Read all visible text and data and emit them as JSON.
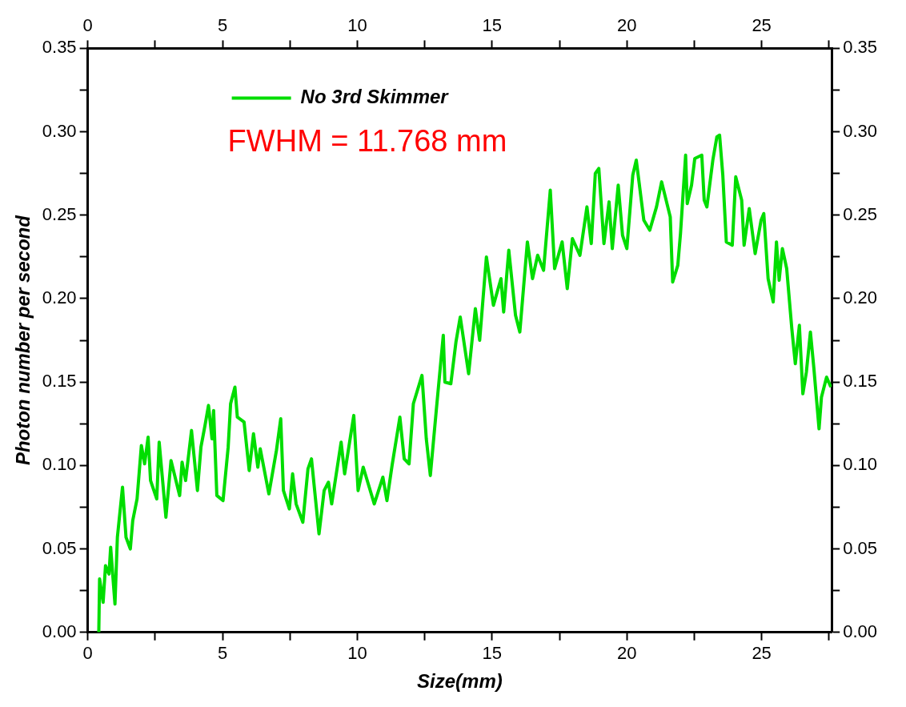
{
  "chart_data": {
    "type": "line",
    "xlabel": "Size(mm)",
    "ylabel": "Photon number per second",
    "xlim": [
      0,
      27.6
    ],
    "ylim": [
      0,
      0.35
    ],
    "xticks": [
      0,
      {
        "value": 2.5,
        "label": null
      },
      5,
      {
        "value": 7.5,
        "label": null
      },
      10,
      {
        "value": 12.5,
        "label": null
      },
      15,
      {
        "value": 17.5,
        "label": null
      },
      20,
      {
        "value": 22.5,
        "label": null
      },
      25,
      {
        "value": 27.5,
        "label": null
      }
    ],
    "x2lim": [
      0,
      27.6
    ],
    "x2ticks": [
      0,
      {
        "value": 2.5,
        "label": null
      },
      5,
      {
        "value": 7.5,
        "label": null
      },
      10,
      {
        "value": 12.5,
        "label": null
      },
      15,
      {
        "value": 17.5,
        "label": null
      },
      20,
      {
        "value": 22.5,
        "label": null
      },
      25,
      {
        "value": 27.5,
        "label": null
      }
    ],
    "yticks": [
      {
        "value": 0,
        "label": "0.00"
      },
      {
        "value": 0.025,
        "label": null
      },
      {
        "value": 0.05,
        "label": "0.05"
      },
      {
        "value": 0.075,
        "label": null
      },
      {
        "value": 0.1,
        "label": "0.10"
      },
      {
        "value": 0.125,
        "label": null
      },
      {
        "value": 0.15,
        "label": "0.15"
      },
      {
        "value": 0.175,
        "label": null
      },
      {
        "value": 0.2,
        "label": "0.20"
      },
      {
        "value": 0.225,
        "label": null
      },
      {
        "value": 0.25,
        "label": "0.25"
      },
      {
        "value": 0.275,
        "label": null
      },
      {
        "value": 0.3,
        "label": "0.30"
      },
      {
        "value": 0.325,
        "label": null
      },
      {
        "value": 0.35,
        "label": "0.35"
      }
    ],
    "y2lim": [
      0,
      0.35
    ],
    "y2ticks": [
      {
        "value": 0,
        "label": "0.00"
      },
      {
        "value": 0.025,
        "label": null
      },
      {
        "value": 0.05,
        "label": "0.05"
      },
      {
        "value": 0.075,
        "label": null
      },
      {
        "value": 0.1,
        "label": "0.10"
      },
      {
        "value": 0.125,
        "label": null
      },
      {
        "value": 0.15,
        "label": "0.15"
      },
      {
        "value": 0.175,
        "label": null
      },
      {
        "value": 0.2,
        "label": "0.20"
      },
      {
        "value": 0.225,
        "label": null
      },
      {
        "value": 0.25,
        "label": "0.25"
      },
      {
        "value": 0.275,
        "label": null
      },
      {
        "value": 0.3,
        "label": "0.30"
      },
      {
        "value": 0.325,
        "label": null
      },
      {
        "value": 0.35,
        "label": "0.35"
      }
    ],
    "grid": false,
    "legend": "top left",
    "marker": "none",
    "line_style": "solid",
    "annotations": [
      "FWHM = 11.768 mm"
    ],
    "series": [
      {
        "name": "No 3rd Skimmer",
        "color": "#00dd00",
        "x": [
          0.41,
          0.44,
          0.57,
          0.66,
          0.79,
          0.85,
          1.01,
          1.1,
          1.29,
          1.42,
          1.58,
          1.67,
          1.83,
          1.99,
          2.11,
          2.24,
          2.33,
          2.56,
          2.65,
          2.9,
          3.09,
          3.41,
          3.5,
          3.63,
          3.85,
          4.07,
          4.2,
          4.35,
          4.48,
          4.61,
          4.67,
          4.79,
          5.02,
          5.21,
          5.3,
          5.46,
          5.55,
          5.8,
          5.99,
          6.15,
          6.31,
          6.4,
          6.72,
          7.0,
          7.16,
          7.26,
          7.48,
          7.6,
          7.73,
          7.98,
          8.17,
          8.3,
          8.58,
          8.77,
          8.93,
          9.05,
          9.4,
          9.53,
          9.87,
          10.03,
          10.22,
          10.63,
          10.95,
          11.1,
          11.29,
          11.58,
          11.74,
          11.92,
          12.08,
          12.4,
          12.56,
          12.71,
          12.93,
          13.19,
          13.25,
          13.47,
          13.66,
          13.82,
          14.13,
          14.38,
          14.54,
          14.79,
          15.05,
          15.33,
          15.43,
          15.62,
          15.87,
          16.03,
          16.31,
          16.5,
          16.69,
          16.91,
          17.16,
          17.32,
          17.6,
          17.79,
          17.98,
          18.26,
          18.52,
          18.68,
          18.83,
          18.96,
          19.15,
          19.34,
          19.46,
          19.68,
          19.84,
          20.0,
          20.22,
          20.35,
          20.63,
          20.85,
          21.1,
          21.29,
          21.61,
          21.7,
          21.89,
          21.99,
          22.18,
          22.24,
          22.4,
          22.52,
          22.78,
          22.87,
          22.97,
          23.19,
          23.34,
          23.44,
          23.56,
          23.69,
          23.91,
          24.04,
          24.26,
          24.35,
          24.54,
          24.76,
          24.98,
          25.08,
          25.24,
          25.43,
          25.55,
          25.65,
          25.77,
          25.93,
          26.12,
          26.25,
          26.4,
          26.53,
          26.66,
          26.81,
          26.94,
          27.13,
          27.22,
          27.41,
          27.57
        ],
        "values": [
          0,
          0.032,
          0.018,
          0.04,
          0.035,
          0.051,
          0.017,
          0.057,
          0.087,
          0.057,
          0.05,
          0.067,
          0.08,
          0.112,
          0.101,
          0.117,
          0.091,
          0.08,
          0.114,
          0.069,
          0.103,
          0.082,
          0.102,
          0.091,
          0.121,
          0.085,
          0.111,
          0.124,
          0.136,
          0.116,
          0.133,
          0.082,
          0.079,
          0.111,
          0.137,
          0.147,
          0.129,
          0.126,
          0.097,
          0.119,
          0.099,
          0.11,
          0.083,
          0.109,
          0.128,
          0.085,
          0.074,
          0.095,
          0.077,
          0.066,
          0.098,
          0.104,
          0.059,
          0.085,
          0.09,
          0.077,
          0.114,
          0.095,
          0.13,
          0.085,
          0.099,
          0.077,
          0.093,
          0.079,
          0.1,
          0.129,
          0.104,
          0.101,
          0.137,
          0.154,
          0.116,
          0.094,
          0.133,
          0.178,
          0.15,
          0.149,
          0.174,
          0.189,
          0.155,
          0.194,
          0.175,
          0.225,
          0.196,
          0.212,
          0.192,
          0.229,
          0.19,
          0.18,
          0.234,
          0.212,
          0.226,
          0.217,
          0.265,
          0.218,
          0.234,
          0.206,
          0.236,
          0.226,
          0.255,
          0.233,
          0.275,
          0.278,
          0.233,
          0.258,
          0.23,
          0.268,
          0.238,
          0.23,
          0.274,
          0.283,
          0.247,
          0.241,
          0.255,
          0.27,
          0.249,
          0.21,
          0.22,
          0.239,
          0.286,
          0.257,
          0.268,
          0.284,
          0.286,
          0.259,
          0.255,
          0.283,
          0.297,
          0.298,
          0.274,
          0.234,
          0.232,
          0.273,
          0.259,
          0.232,
          0.254,
          0.227,
          0.247,
          0.251,
          0.212,
          0.198,
          0.234,
          0.211,
          0.23,
          0.218,
          0.182,
          0.161,
          0.184,
          0.143,
          0.156,
          0.18,
          0.158,
          0.122,
          0.141,
          0.153,
          0.147
        ]
      }
    ]
  }
}
